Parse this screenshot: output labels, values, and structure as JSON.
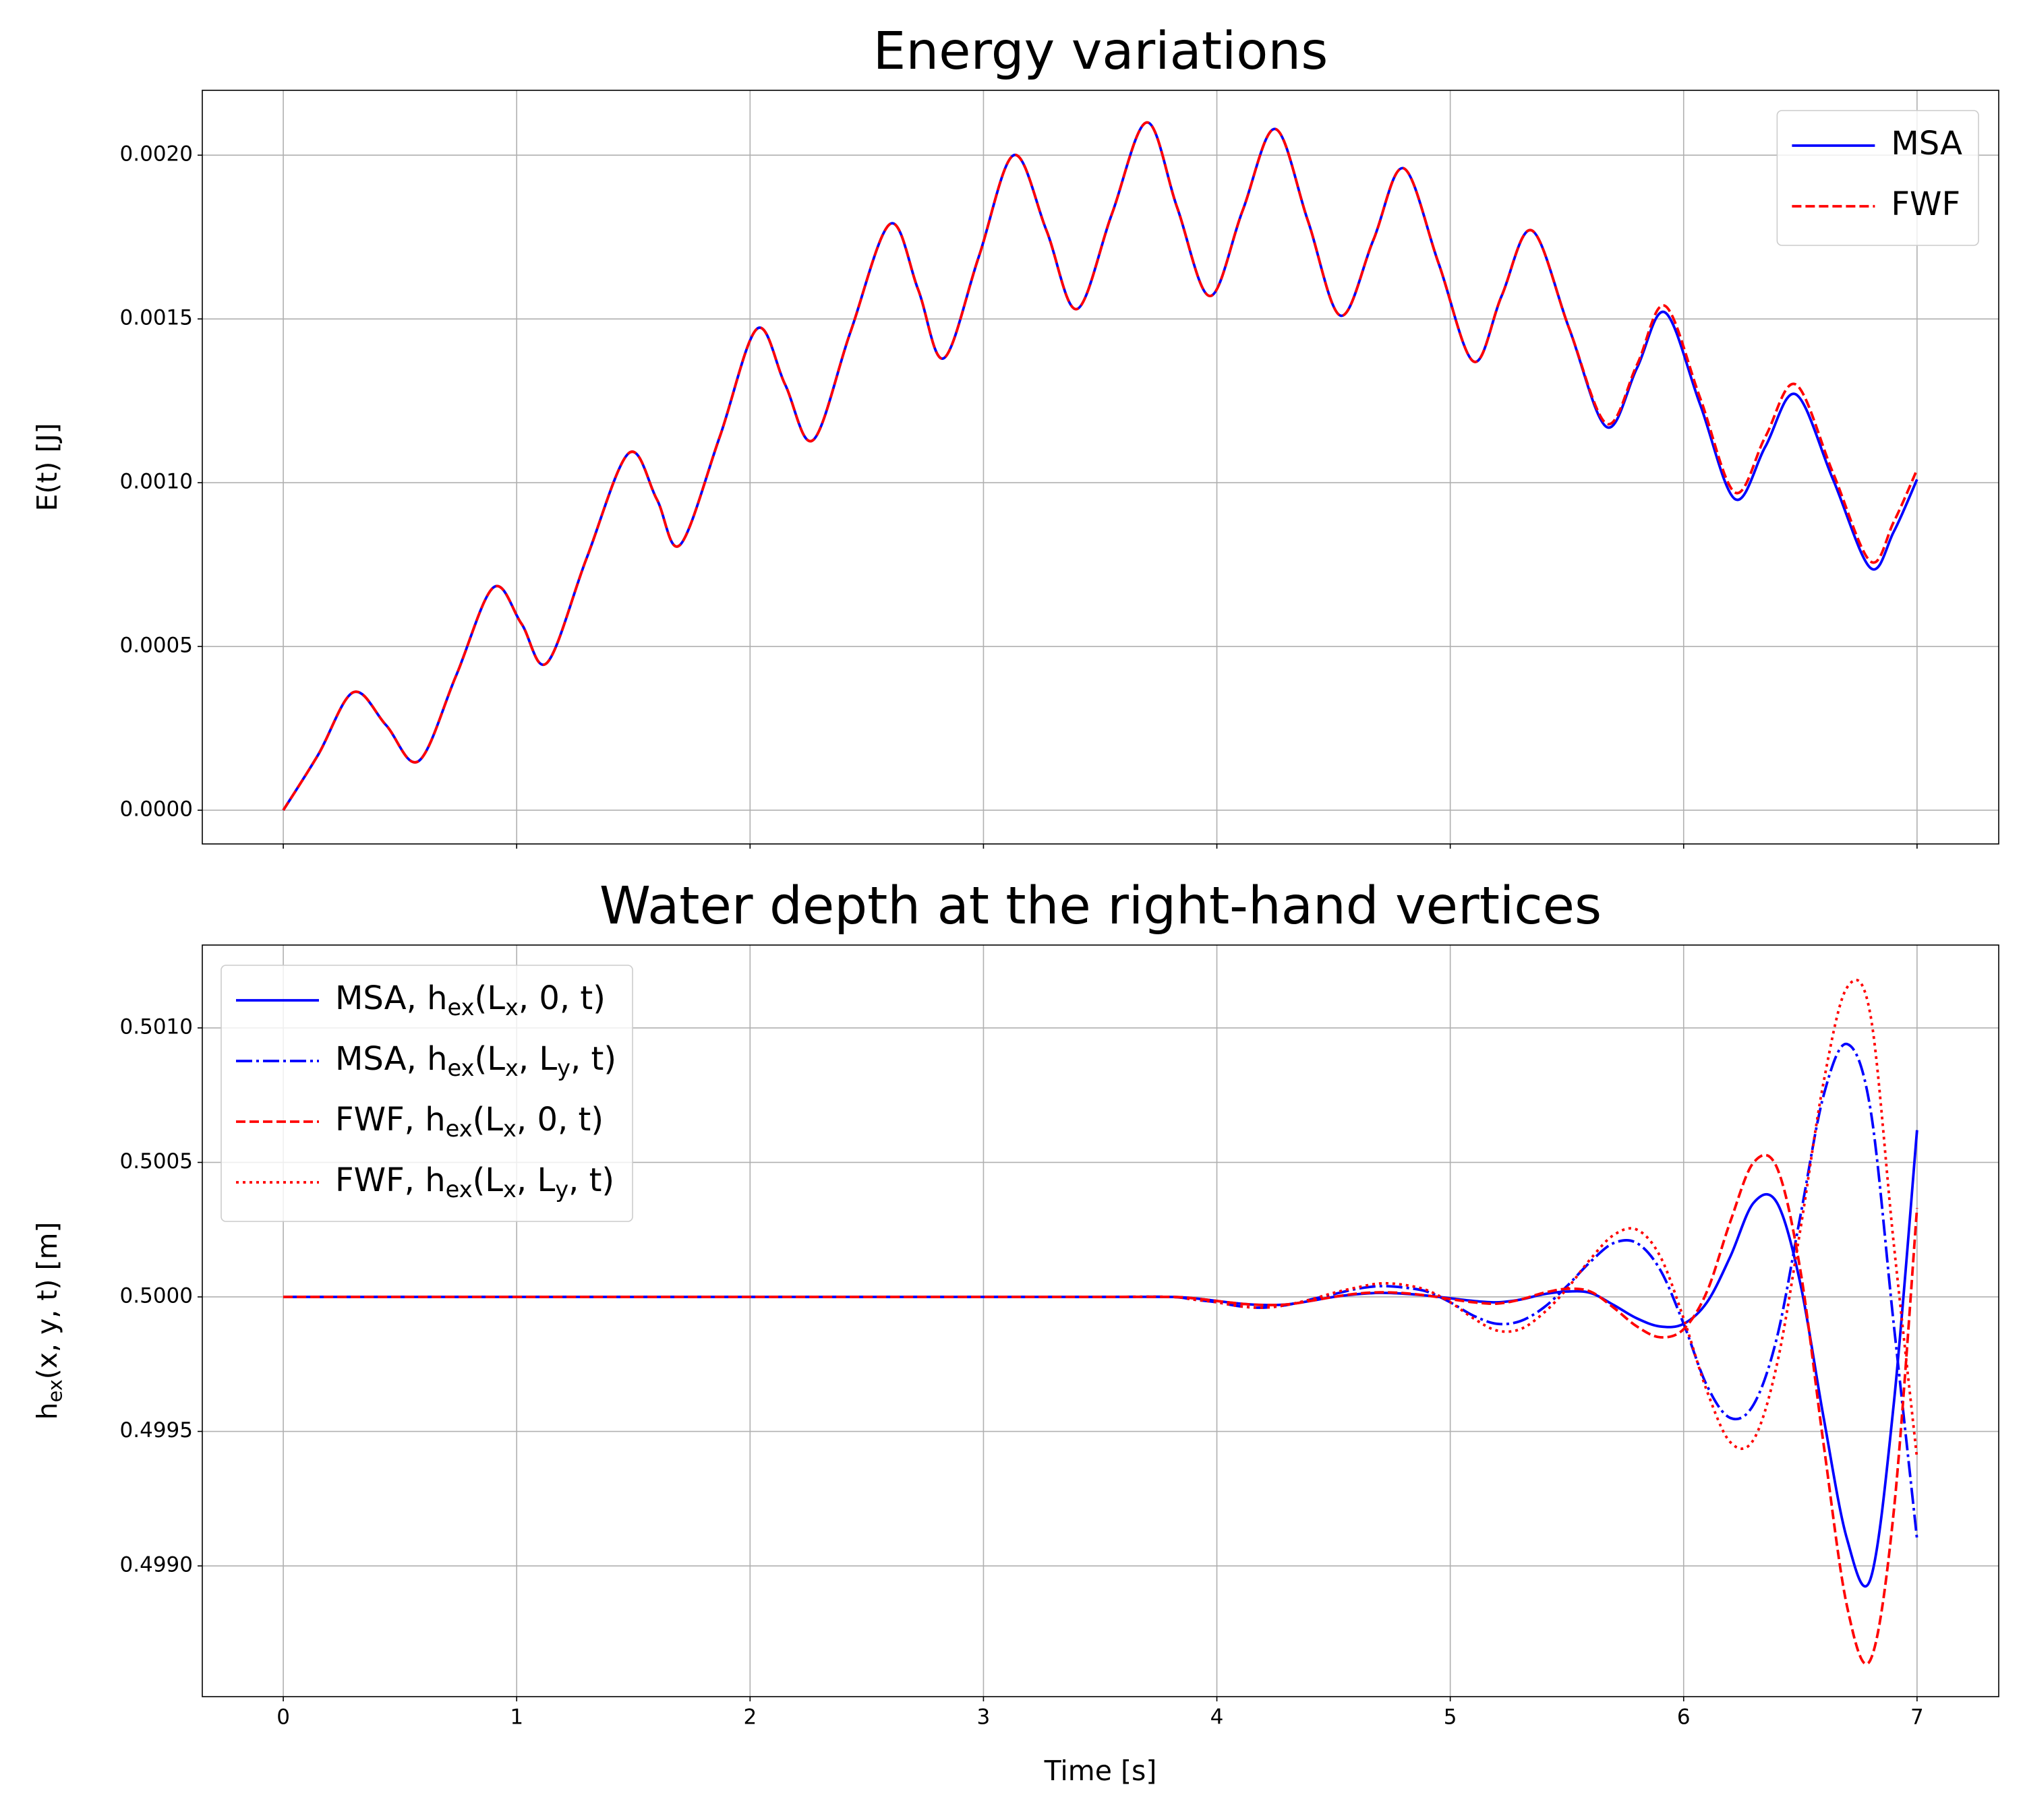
{
  "chart_data": [
    {
      "type": "line",
      "title": "Energy variations",
      "ylabel": "E(t) [J]",
      "xlim": [
        -0.347,
        7.35
      ],
      "xticks": [
        0,
        1,
        2,
        3,
        4,
        5,
        6,
        7
      ],
      "xtick_labels": false,
      "ylim": [
        -0.000103,
        0.002198
      ],
      "yticks": [
        {
          "value": 0,
          "label": "0.0000"
        },
        {
          "value": 0.0005,
          "label": "0.0005"
        },
        {
          "value": 0.001,
          "label": "0.0010"
        },
        {
          "value": 0.0015,
          "label": "0.0015"
        },
        {
          "value": 0.002,
          "label": "0.0020"
        }
      ],
      "grid": true,
      "legend": "upper right",
      "x": [
        0,
        0.15,
        0.3,
        0.44,
        0.58,
        0.74,
        0.9,
        1.02,
        1.13,
        1.3,
        1.48,
        1.6,
        1.7,
        1.87,
        2.03,
        2.15,
        2.27,
        2.43,
        2.6,
        2.72,
        2.83,
        2.98,
        3.13,
        3.27,
        3.4,
        3.55,
        3.7,
        3.83,
        3.97,
        4.11,
        4.25,
        4.39,
        4.53,
        4.67,
        4.8,
        4.95,
        5.1,
        5.22,
        5.35,
        5.51,
        5.67,
        5.8,
        5.92,
        6.07,
        6.22,
        6.35,
        6.48,
        6.64,
        6.8,
        6.9,
        7.0
      ],
      "series": [
        {
          "name": "MSA",
          "color": "#0000ff",
          "linestyle": "solid",
          "values": [
            0,
            0.00017,
            0.00036,
            0.00026,
            0.00015,
            0.00041,
            0.00068,
            0.00057,
            0.00045,
            0.00077,
            0.00109,
            0.00095,
            0.00081,
            0.00114,
            0.00147,
            0.0013,
            0.00113,
            0.00146,
            0.00179,
            0.00159,
            0.00138,
            0.00169,
            0.002,
            0.00177,
            0.00153,
            0.00182,
            0.0021,
            0.00184,
            0.00157,
            0.00183,
            0.00208,
            0.0018,
            0.00151,
            0.00174,
            0.00196,
            0.00167,
            0.00137,
            0.00157,
            0.00177,
            0.00147,
            0.00117,
            0.00135,
            0.00152,
            0.00124,
            0.00095,
            0.00111,
            0.00127,
            0.00101,
            0.00074,
            0.00085,
            0.00101
          ]
        },
        {
          "name": "FWF",
          "color": "#ff0000",
          "linestyle": "dashed",
          "values": [
            0,
            0.00017,
            0.00036,
            0.00026,
            0.00015,
            0.00041,
            0.00068,
            0.00057,
            0.00045,
            0.00077,
            0.00109,
            0.00095,
            0.00081,
            0.00114,
            0.00147,
            0.0013,
            0.00113,
            0.00146,
            0.00179,
            0.00159,
            0.00138,
            0.00169,
            0.002,
            0.00177,
            0.00153,
            0.00182,
            0.0021,
            0.00184,
            0.00157,
            0.00183,
            0.00208,
            0.0018,
            0.00151,
            0.00174,
            0.00196,
            0.00167,
            0.00137,
            0.00157,
            0.00177,
            0.00147,
            0.00118,
            0.00136,
            0.00154,
            0.00126,
            0.00097,
            0.00114,
            0.0013,
            0.00103,
            0.00076,
            0.00088,
            0.00104
          ]
        }
      ]
    },
    {
      "type": "line",
      "title": "Water depth at the right-hand vertices",
      "xlabel": "Time [s]",
      "ylabel": "h_{ex}(x, y, t) [m]",
      "xlim": [
        -0.347,
        7.35
      ],
      "xticks": [
        0,
        1,
        2,
        3,
        4,
        5,
        6,
        7
      ],
      "ylim": [
        0.498514,
        0.501308
      ],
      "yticks": [
        {
          "value": 0.499,
          "label": "0.4990"
        },
        {
          "value": 0.4995,
          "label": "0.4995"
        },
        {
          "value": 0.5,
          "label": "0.5000"
        },
        {
          "value": 0.5005,
          "label": "0.5005"
        },
        {
          "value": 0.501,
          "label": "0.5010"
        }
      ],
      "grid": true,
      "legend": "upper left",
      "x": [
        0,
        0.5,
        1,
        1.5,
        2,
        2.5,
        3,
        3.5,
        3.8,
        3.9,
        4.0,
        4.1,
        4.2,
        4.3,
        4.4,
        4.5,
        4.6,
        4.7,
        4.8,
        4.9,
        5.0,
        5.1,
        5.2,
        5.3,
        5.4,
        5.5,
        5.6,
        5.7,
        5.8,
        5.9,
        6.0,
        6.1,
        6.2,
        6.3,
        6.4,
        6.5,
        6.6,
        6.7,
        6.8,
        6.9,
        7.0
      ],
      "series": [
        {
          "name": "MSA, h_{ex}(L_{x}, 0, t)",
          "color": "#0000ff",
          "linestyle": "solid",
          "values": [
            0.5,
            0.5,
            0.5,
            0.5,
            0.5,
            0.5,
            0.5,
            0.5,
            0.5,
            0.499995,
            0.499985,
            0.499975,
            0.49997,
            0.499972,
            0.499985,
            0.5,
            0.50001,
            0.500015,
            0.500012,
            0.500005,
            0.499995,
            0.499985,
            0.49998,
            0.49999,
            0.50001,
            0.50002,
            0.500015,
            0.49997,
            0.49992,
            0.49989,
            0.4999,
            0.49998,
            0.50015,
            0.50035,
            0.50035,
            0.50005,
            0.49955,
            0.4991,
            0.49895,
            0.4996,
            0.50062
          ]
        },
        {
          "name": "MSA, h_{ex}(L_{x}, L_{y}, t)",
          "color": "#0000ff",
          "linestyle": "dashdot",
          "values": [
            0.5,
            0.5,
            0.5,
            0.5,
            0.5,
            0.5,
            0.5,
            0.5,
            0.5,
            0.49999,
            0.49998,
            0.499965,
            0.49996,
            0.49997,
            0.49999,
            0.50001,
            0.50003,
            0.50004,
            0.500035,
            0.50002,
            0.49998,
            0.49993,
            0.4999,
            0.49991,
            0.49996,
            0.50004,
            0.50013,
            0.5002,
            0.5002,
            0.5001,
            0.4999,
            0.49967,
            0.49955,
            0.4996,
            0.49985,
            0.5003,
            0.50075,
            0.50094,
            0.5007,
            0.4999,
            0.4991
          ]
        },
        {
          "name": "FWF, h_{ex}(L_{x}, 0, t)",
          "color": "#ff0000",
          "linestyle": "dashed",
          "values": [
            0.5,
            0.5,
            0.5,
            0.5,
            0.5,
            0.5,
            0.5,
            0.5,
            0.5,
            0.499995,
            0.499985,
            0.499975,
            0.49997,
            0.499972,
            0.499985,
            0.5,
            0.500012,
            0.500017,
            0.500014,
            0.500005,
            0.499992,
            0.49998,
            0.499975,
            0.49999,
            0.500015,
            0.50003,
            0.50002,
            0.49996,
            0.49989,
            0.49985,
            0.49988,
            0.50002,
            0.50028,
            0.5005,
            0.50048,
            0.5001,
            0.49945,
            0.49885,
            0.49865,
            0.4992,
            0.50033
          ]
        },
        {
          "name": "FWF, h_{ex}(L_{x}, L_{y}, t)",
          "color": "#ff0000",
          "linestyle": "dotted",
          "values": [
            0.5,
            0.5,
            0.5,
            0.5,
            0.5,
            0.5,
            0.5,
            0.5,
            0.5,
            0.49999,
            0.49998,
            0.499965,
            0.49996,
            0.49997,
            0.49999,
            0.500015,
            0.500035,
            0.50005,
            0.500045,
            0.500025,
            0.49998,
            0.49992,
            0.499875,
            0.49988,
            0.49994,
            0.50003,
            0.50014,
            0.50023,
            0.50025,
            0.50015,
            0.49992,
            0.49965,
            0.49946,
            0.49947,
            0.49975,
            0.50025,
            0.5008,
            0.50115,
            0.50105,
            0.5002,
            0.4994
          ]
        }
      ]
    }
  ]
}
